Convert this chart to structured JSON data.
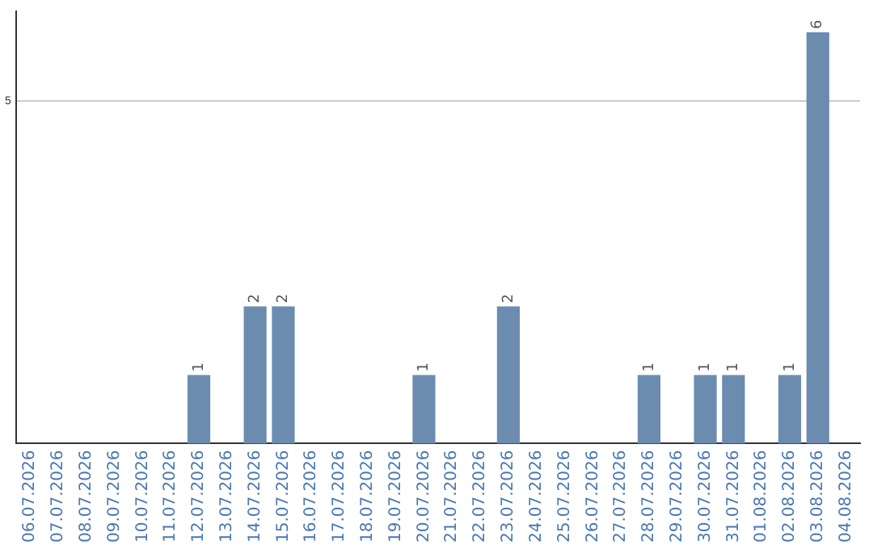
{
  "chart_data": {
    "type": "bar",
    "categories": [
      "06.07.2026",
      "07.07.2026",
      "08.07.2026",
      "09.07.2026",
      "10.07.2026",
      "11.07.2026",
      "12.07.2026",
      "13.07.2026",
      "14.07.2026",
      "15.07.2026",
      "16.07.2026",
      "17.07.2026",
      "18.07.2026",
      "19.07.2026",
      "20.07.2026",
      "21.07.2026",
      "22.07.2026",
      "23.07.2026",
      "24.07.2026",
      "25.07.2026",
      "26.07.2026",
      "27.07.2026",
      "28.07.2026",
      "29.07.2026",
      "30.07.2026",
      "31.07.2026",
      "01.08.2026",
      "02.08.2026",
      "03.08.2026",
      "04.08.2026"
    ],
    "values": [
      0,
      0,
      0,
      0,
      0,
      0,
      1,
      0,
      2,
      2,
      0,
      0,
      0,
      0,
      1,
      0,
      0,
      2,
      0,
      0,
      0,
      0,
      1,
      0,
      1,
      1,
      0,
      1,
      6,
      0
    ],
    "value_labels": [
      null,
      null,
      null,
      null,
      null,
      null,
      "1",
      null,
      "2",
      "2",
      null,
      null,
      null,
      null,
      "1",
      null,
      null,
      "2",
      null,
      null,
      null,
      null,
      "1",
      null,
      "1",
      "1",
      null,
      "1",
      "6",
      null
    ],
    "color": "#6b8caf",
    "ylim": [
      0,
      6.3
    ],
    "yticks": [
      5
    ],
    "grid": "y",
    "legend": false
  }
}
